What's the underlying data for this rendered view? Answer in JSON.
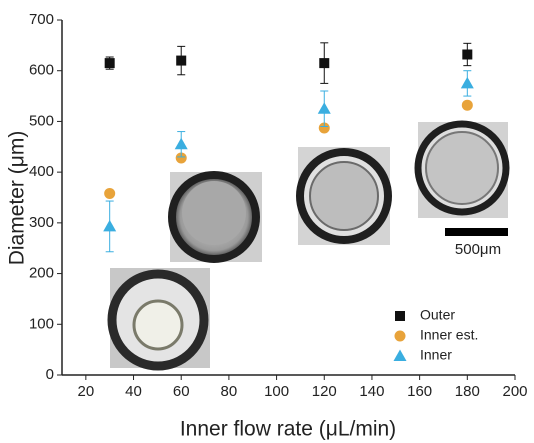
{
  "chart_data": {
    "type": "scatter",
    "xlabel": "Inner flow rate (μL/min)",
    "ylabel": "Diameter (μm)",
    "xlim": [
      10,
      200
    ],
    "ylim": [
      0,
      700
    ],
    "xticks": [
      20,
      40,
      60,
      80,
      100,
      120,
      140,
      160,
      180,
      200
    ],
    "yticks": [
      0,
      100,
      200,
      300,
      400,
      500,
      600,
      700
    ],
    "x": [
      30,
      60,
      120,
      180
    ],
    "series": [
      {
        "name": "Outer",
        "color": "#111111",
        "marker": "square",
        "values": [
          615,
          620,
          615,
          632
        ],
        "errors": [
          12,
          28,
          40,
          22
        ]
      },
      {
        "name": "Inner est.",
        "color": "#e8a33a",
        "marker": "circle",
        "values": [
          358,
          428,
          487,
          532
        ]
      },
      {
        "name": "Inner",
        "color": "#3aaee0",
        "marker": "triangle",
        "values": [
          293,
          455,
          525,
          575
        ],
        "errors": [
          50,
          25,
          35,
          25
        ]
      }
    ],
    "scale_bar_label": "500μm"
  }
}
